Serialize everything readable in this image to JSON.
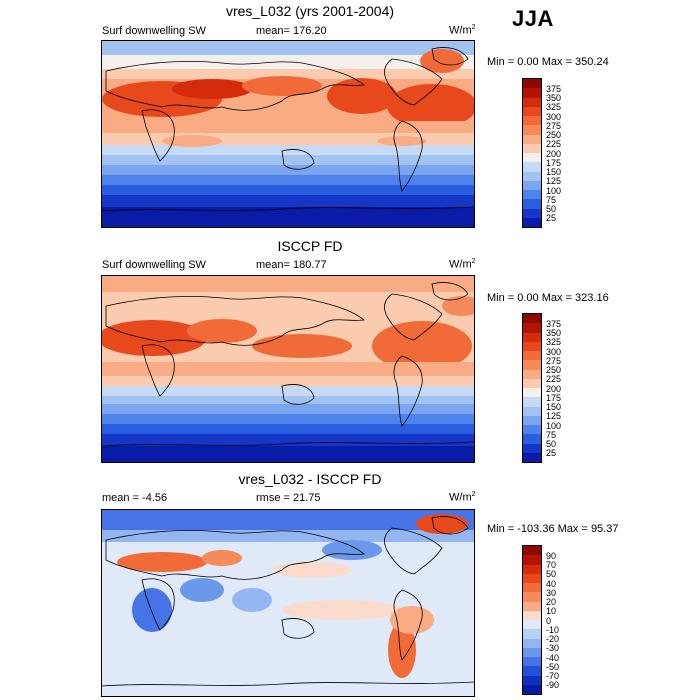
{
  "season": "JJA",
  "panels": [
    {
      "title": "vres_L032 (yrs 2001-2004)",
      "left_label": "Surf downwelling SW",
      "center_label": "mean= 176.20",
      "units": "W/m",
      "units_sup": "2",
      "minmax": "Min =   0.00 Max = 350.24",
      "legend_labels": [
        "375",
        "350",
        "325",
        "300",
        "275",
        "250",
        "225",
        "200",
        "175",
        "150",
        "125",
        "100",
        "75",
        "50",
        "25"
      ],
      "legend_colors": [
        "#8c0a00",
        "#b31400",
        "#d42b0c",
        "#e8491c",
        "#f06b38",
        "#f58a5a",
        "#f9ab84",
        "#fbcbb0",
        "#f3f0ec",
        "#c7daf5",
        "#a2c2f2",
        "#7ba6ef",
        "#4f82ea",
        "#2a5ee0",
        "#1636c8",
        "#0a1ba8"
      ]
    },
    {
      "title": "ISCCP FD",
      "left_label": "Surf downwelling SW",
      "center_label": "mean= 180.77",
      "units": "W/m",
      "units_sup": "2",
      "minmax": "Min =   0.00 Max = 323.16",
      "legend_labels": [
        "375",
        "350",
        "325",
        "300",
        "275",
        "250",
        "225",
        "200",
        "175",
        "150",
        "125",
        "100",
        "75",
        "50",
        "25"
      ],
      "legend_colors": [
        "#8c0a00",
        "#b31400",
        "#d42b0c",
        "#e8491c",
        "#f06b38",
        "#f58a5a",
        "#f9ab84",
        "#fbcbb0",
        "#f3f0ec",
        "#c7daf5",
        "#a2c2f2",
        "#7ba6ef",
        "#4f82ea",
        "#2a5ee0",
        "#1636c8",
        "#0a1ba8"
      ]
    },
    {
      "title": "vres_L032 - ISCCP FD",
      "left_label": "mean =  -4.56",
      "center_label": "rmse =  21.75",
      "units": "W/m",
      "units_sup": "2",
      "minmax": "Min = -103.36 Max =  95.37",
      "legend_labels": [
        "90",
        "70",
        "50",
        "40",
        "30",
        "20",
        "10",
        "0",
        "-10",
        "-20",
        "-30",
        "-40",
        "-50",
        "-70",
        "-90"
      ],
      "legend_colors": [
        "#8c0a00",
        "#b31400",
        "#d42b0c",
        "#e8491c",
        "#f06b38",
        "#f58a5a",
        "#f9ab84",
        "#fbdccc",
        "#dfe9f8",
        "#b9d0f4",
        "#93b6f0",
        "#6c98ec",
        "#4674e6",
        "#2450d8",
        "#1230c0",
        "#081aa0"
      ]
    }
  ]
}
